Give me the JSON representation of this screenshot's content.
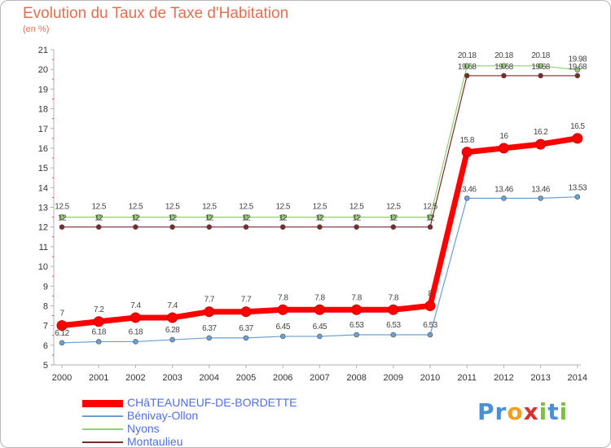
{
  "title": "Evolution du Taux de Taxe d'Habitation",
  "subtitle": "(en %)",
  "brand": [
    "P",
    "r",
    "o",
    "x",
    "i",
    "t",
    "i"
  ],
  "brand_colors": [
    "#4a8fd8",
    "#4a8fd8",
    "#f2a020",
    "#d83030",
    "#7bc043",
    "#4a8fd8",
    "#7bc043"
  ],
  "chart_data": {
    "type": "line",
    "title": "Evolution du Taux de Taxe d'Habitation",
    "ylabel": "(en %)",
    "xlabel": "",
    "ylim": [
      5,
      21
    ],
    "grid": false,
    "legend_position": "bottom-left",
    "categories": [
      "2000",
      "2001",
      "2002",
      "2003",
      "2004",
      "2005",
      "2006",
      "2007",
      "2008",
      "2009",
      "2010",
      "2011",
      "2012",
      "2013",
      "2014"
    ],
    "yticks": [
      "5",
      "6",
      "7",
      "8",
      "9",
      "10",
      "11",
      "12",
      "13",
      "14",
      "15",
      "16",
      "17",
      "18",
      "19",
      "20",
      "21"
    ],
    "series": [
      {
        "name": "CHâTEAUNEUF-DE-BORDETTE",
        "color": "#ff0000",
        "values": [
          7,
          7.2,
          7.4,
          7.4,
          7.7,
          7.7,
          7.8,
          7.8,
          7.8,
          7.8,
          8,
          15.8,
          16,
          16.2,
          16.5
        ],
        "labels": [
          "7",
          "7.2",
          "7.4",
          "7.4",
          "7.7",
          "7.7",
          "7.8",
          "7.8",
          "7.8",
          "7.8",
          "8",
          "15.8",
          "16",
          "16.2",
          "16.5"
        ]
      },
      {
        "name": "Bénivay-Ollon",
        "color": "#6a9fd0",
        "values": [
          6.12,
          6.18,
          6.18,
          6.28,
          6.37,
          6.37,
          6.45,
          6.45,
          6.53,
          6.53,
          6.53,
          13.46,
          13.46,
          13.46,
          13.53
        ],
        "labels": [
          "6.12",
          "6.18",
          "6.18",
          "6.28",
          "6.37",
          "6.37",
          "6.45",
          "6.45",
          "6.53",
          "6.53",
          "6.53",
          "13.46",
          "13.46",
          "13.46",
          "13.53"
        ]
      },
      {
        "name": "Nyons",
        "color": "#8fd070",
        "values": [
          12.5,
          12.5,
          12.5,
          12.5,
          12.5,
          12.5,
          12.5,
          12.5,
          12.5,
          12.5,
          12.5,
          20.18,
          20.18,
          20.18,
          19.98
        ],
        "labels": [
          "12.5",
          "12.5",
          "12.5",
          "12.5",
          "12.5",
          "12.5",
          "12.5",
          "12.5",
          "12.5",
          "12.5",
          "12.5",
          "20.18",
          "20.18",
          "20.18",
          "19.98"
        ]
      },
      {
        "name": "Montaulieu",
        "color": "#7a2a2a",
        "values": [
          12,
          12,
          12,
          12,
          12,
          12,
          12,
          12,
          12,
          12,
          12,
          19.68,
          19.68,
          19.68,
          19.68
        ],
        "labels": [
          "12",
          "12",
          "12",
          "12",
          "12",
          "12",
          "12",
          "12",
          "12",
          "12",
          "12",
          "19.68",
          "19.68",
          "19.68",
          "19.68"
        ]
      }
    ]
  }
}
